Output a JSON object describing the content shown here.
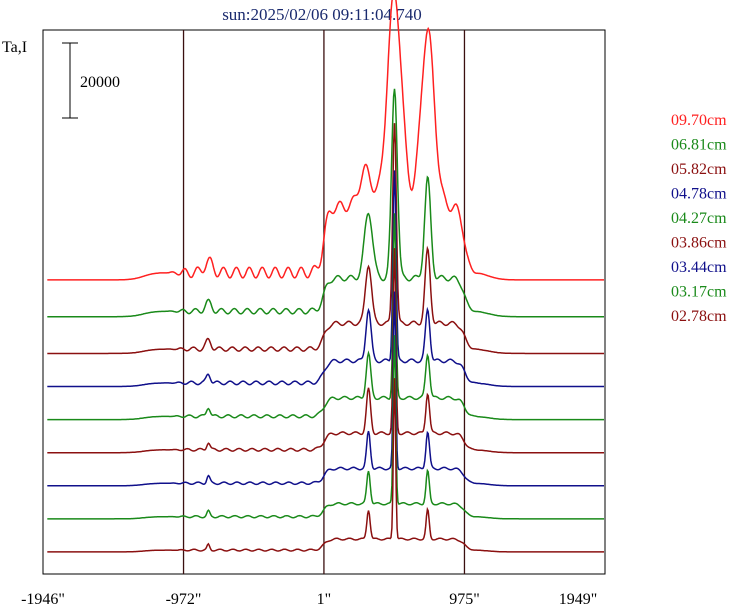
{
  "chart_data": {
    "type": "line",
    "title": "sun:2025/02/06 09:11:04.740",
    "ylabel": "Ta,I",
    "xlabel": "",
    "scale_bar_label": "20000",
    "x_ticks": [
      "-1946\"",
      "-972\"",
      "1\"",
      "975\"",
      "1949\""
    ],
    "x_tick_values": [
      -1946,
      -972,
      1,
      975,
      1949
    ],
    "xlim": [
      -1946,
      1949
    ],
    "vertical_markers": [
      -972,
      1,
      975
    ],
    "grid": false,
    "legend_position": "right",
    "colors": {
      "red": "#ff2020",
      "green": "#1a8a1a",
      "darkred": "#8b1010",
      "blue": "#10108b",
      "axis": "#000000",
      "marker": "#3a1010",
      "title": "#1a2a6e"
    },
    "series": [
      {
        "name": "09.70cm",
        "color": "#ff2020",
        "offset": 80000,
        "solar_level": 18000,
        "quiet_level": 2000,
        "peaks": [
          {
            "x": 490,
            "h": 58000,
            "w": 70
          },
          {
            "x": 720,
            "h": 48000,
            "w": 65
          },
          {
            "x": 290,
            "h": 10000,
            "w": 60
          },
          {
            "x": -800,
            "h": 3000,
            "w": 40
          }
        ]
      },
      {
        "name": "06.81cm",
        "color": "#1a8a1a",
        "offset": 70000,
        "solar_level": 9000,
        "quiet_level": 1500,
        "peaks": [
          {
            "x": 490,
            "h": 52000,
            "w": 28
          },
          {
            "x": 720,
            "h": 27000,
            "w": 30
          },
          {
            "x": 310,
            "h": 18000,
            "w": 40
          },
          {
            "x": -800,
            "h": 2500,
            "w": 30
          }
        ]
      },
      {
        "name": "05.82cm",
        "color": "#8b1010",
        "offset": 60000,
        "solar_level": 7000,
        "quiet_level": 1200,
        "peaks": [
          {
            "x": 490,
            "h": 55000,
            "w": 18
          },
          {
            "x": 720,
            "h": 20000,
            "w": 25
          },
          {
            "x": 310,
            "h": 16000,
            "w": 30
          },
          {
            "x": -800,
            "h": 2500,
            "w": 25
          }
        ]
      },
      {
        "name": "04.78cm",
        "color": "#10108b",
        "offset": 51000,
        "solar_level": 6000,
        "quiet_level": 1000,
        "peaks": [
          {
            "x": 490,
            "h": 52000,
            "w": 15
          },
          {
            "x": 720,
            "h": 14000,
            "w": 22
          },
          {
            "x": 310,
            "h": 14000,
            "w": 25
          },
          {
            "x": -800,
            "h": 2500,
            "w": 20
          }
        ]
      },
      {
        "name": "04.27cm",
        "color": "#1a8a1a",
        "offset": 42000,
        "solar_level": 5000,
        "quiet_level": 900,
        "peaks": [
          {
            "x": 490,
            "h": 50000,
            "w": 14
          },
          {
            "x": 720,
            "h": 12000,
            "w": 20
          },
          {
            "x": 310,
            "h": 12000,
            "w": 22
          },
          {
            "x": -800,
            "h": 2500,
            "w": 18
          }
        ]
      },
      {
        "name": "03.86cm",
        "color": "#8b1010",
        "offset": 33000,
        "solar_level": 4500,
        "quiet_level": 800,
        "peaks": [
          {
            "x": 490,
            "h": 50000,
            "w": 13
          },
          {
            "x": 720,
            "h": 11000,
            "w": 18
          },
          {
            "x": 310,
            "h": 12000,
            "w": 20
          },
          {
            "x": -800,
            "h": 2000,
            "w": 16
          }
        ]
      },
      {
        "name": "03.44cm",
        "color": "#10108b",
        "offset": 24000,
        "solar_level": 4000,
        "quiet_level": 700,
        "peaks": [
          {
            "x": 490,
            "h": 48000,
            "w": 12
          },
          {
            "x": 720,
            "h": 10000,
            "w": 17
          },
          {
            "x": 310,
            "h": 10000,
            "w": 18
          },
          {
            "x": -800,
            "h": 2000,
            "w": 15
          }
        ]
      },
      {
        "name": "03.17cm",
        "color": "#1a8a1a",
        "offset": 15000,
        "solar_level": 3500,
        "quiet_level": 600,
        "peaks": [
          {
            "x": 490,
            "h": 46000,
            "w": 12
          },
          {
            "x": 720,
            "h": 9000,
            "w": 16
          },
          {
            "x": 310,
            "h": 9000,
            "w": 17
          },
          {
            "x": -800,
            "h": 1500,
            "w": 14
          }
        ]
      },
      {
        "name": "02.78cm",
        "color": "#8b1010",
        "offset": 6000,
        "solar_level": 3000,
        "quiet_level": 500,
        "peaks": [
          {
            "x": 490,
            "h": 44000,
            "w": 11
          },
          {
            "x": 720,
            "h": 8000,
            "w": 15
          },
          {
            "x": 310,
            "h": 8000,
            "w": 16
          },
          {
            "x": -800,
            "h": 1500,
            "w": 13
          }
        ]
      }
    ],
    "ylim": [
      0,
      148000
    ]
  }
}
